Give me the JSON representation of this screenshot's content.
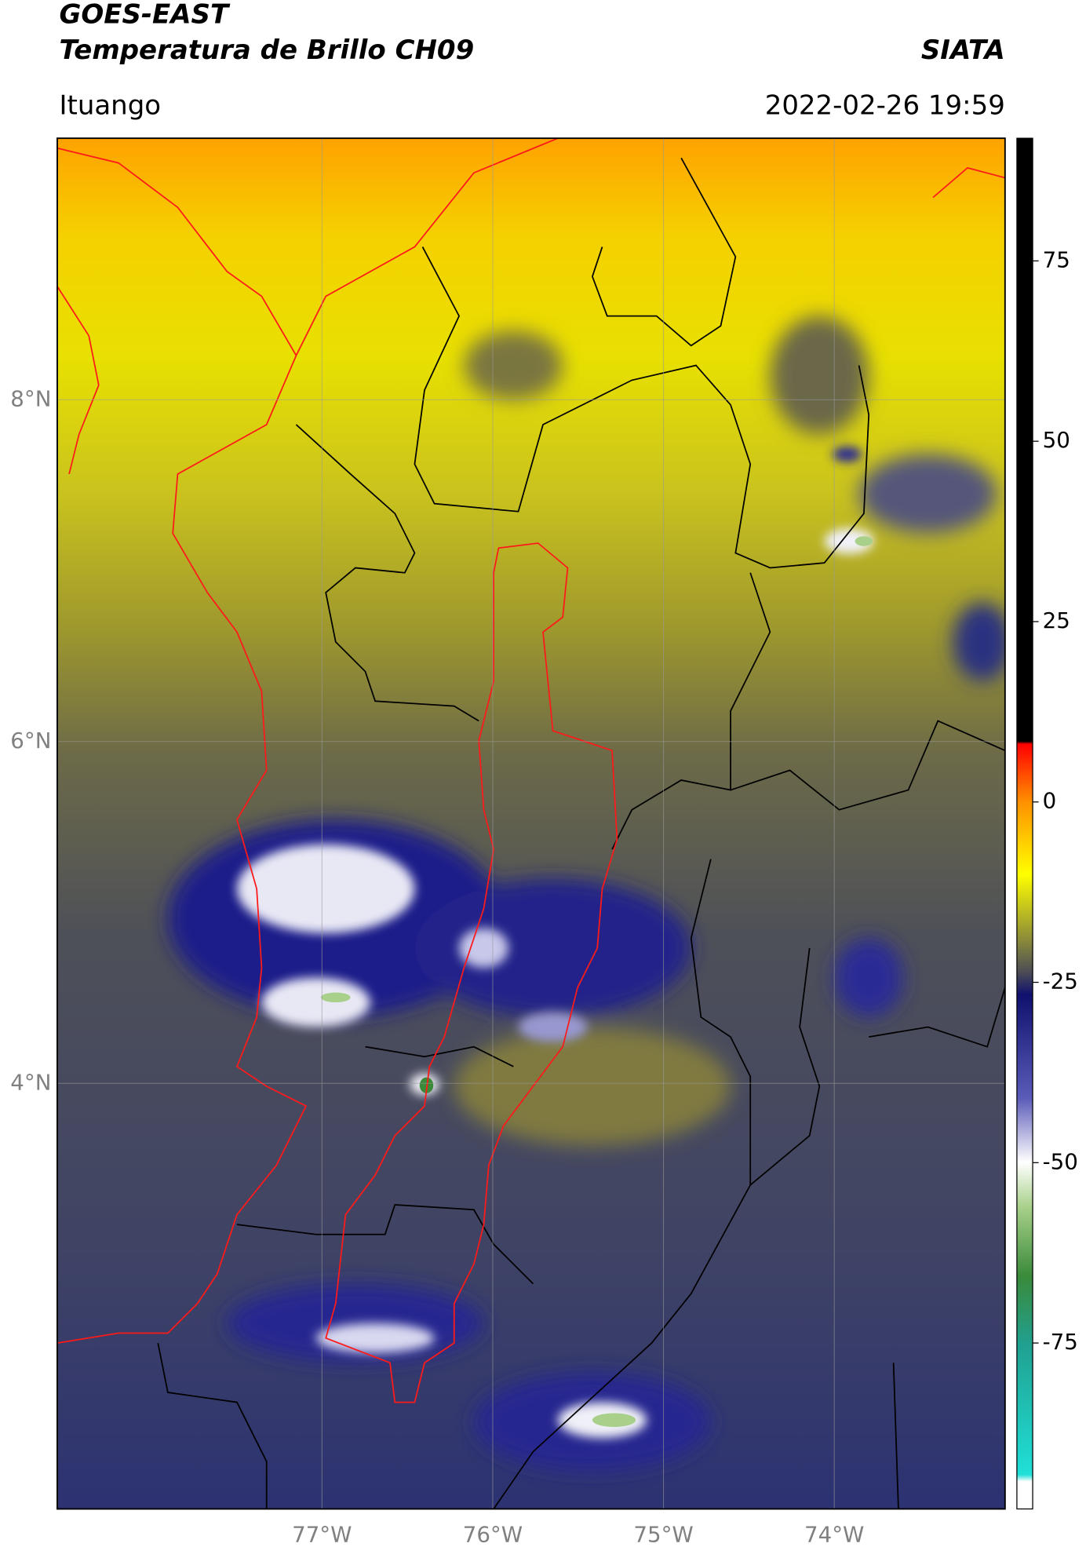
{
  "header": {
    "title": "GOES-EAST",
    "subtitle": "Temperatura de Brillo CH09",
    "source": "SIATA",
    "location": "Ituango",
    "timestamp": "2022-02-26 19:59"
  },
  "map": {
    "type": "raster",
    "xlim": [
      -78.55,
      -73.0
    ],
    "ylim": [
      1.51,
      9.53
    ],
    "xticks": [
      {
        "value": -77,
        "label": "77°W"
      },
      {
        "value": -76,
        "label": "76°W"
      },
      {
        "value": -75,
        "label": "75°W"
      },
      {
        "value": -74,
        "label": "74°W"
      }
    ],
    "yticks": [
      {
        "value": 8,
        "label": "8°N"
      },
      {
        "value": 6,
        "label": "6°N"
      },
      {
        "value": 4,
        "label": "4°N"
      }
    ],
    "grid": true
  },
  "colorbar": {
    "clim": [
      -98,
      92
    ],
    "ticks": [
      75,
      50,
      25,
      0,
      -25,
      -50,
      -75
    ]
  }
}
